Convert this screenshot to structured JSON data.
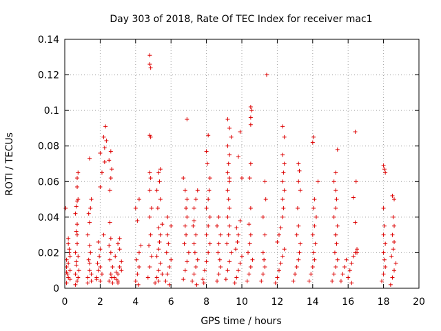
{
  "chart_data": {
    "type": "scatter",
    "title": "Day 303 of 2018, Rate Of TEC Index for receiver mac1",
    "xlabel": "GPS time / hours",
    "ylabel": "ROTI / TECUs",
    "xlim": [
      0,
      20
    ],
    "ylim": [
      0,
      0.14
    ],
    "grid": true,
    "legend": "none",
    "marker": "+",
    "color": "#dd0000",
    "xticks": [
      0,
      2,
      4,
      6,
      8,
      10,
      12,
      14,
      16,
      18,
      20
    ],
    "yticks": [
      0,
      0.02,
      0.04,
      0.06,
      0.08,
      0.1,
      0.12,
      0.14
    ],
    "xtick_labels": [
      "0",
      "2",
      "4",
      "6",
      "8",
      "10",
      "12",
      "14",
      "16",
      "18",
      "20"
    ],
    "ytick_labels": [
      "0",
      "0.02",
      "0.04",
      "0.06",
      "0.08",
      "0.1",
      "0.12",
      "0.14"
    ],
    "series": [
      {
        "name": "ROTI",
        "x": [
          0.1,
          0.2,
          0.3,
          0.15,
          0.25,
          0.1,
          0.2,
          0.3,
          0.2,
          0.1,
          0.3,
          0.2,
          0.1,
          0.25,
          0.05,
          0.6,
          0.7,
          0.65,
          0.75,
          0.6,
          0.7,
          0.65,
          0.75,
          0.7,
          0.6,
          0.8,
          0.7,
          0.65,
          0.75,
          0.7,
          0.7,
          0.75,
          0.7,
          0.65,
          0.6,
          1.3,
          1.4,
          1.35,
          1.5,
          1.45,
          1.4,
          1.3,
          1.5,
          1.4,
          1.35,
          1.45,
          1.5,
          1.4,
          1.3,
          1.4,
          1.8,
          1.9,
          2.0,
          1.85,
          1.95,
          2.0,
          2.1,
          1.9,
          2.0,
          2.2,
          1.8,
          2.0,
          2.1,
          2.0,
          2.25,
          2.35,
          2.2,
          2.3,
          2.25,
          2.5,
          2.6,
          2.7,
          2.55,
          2.65,
          2.6,
          2.5,
          2.7,
          2.6,
          2.55,
          2.6,
          2.65,
          2.5,
          2.6,
          2.55,
          2.8,
          2.9,
          3.0,
          3.1,
          3.2,
          2.85,
          3.0,
          3.1,
          2.9,
          3.0,
          3.2,
          3.1,
          3.0,
          4.0,
          4.1,
          4.2,
          4.05,
          4.15,
          4.2,
          4.3,
          4.1,
          4.0,
          4.2,
          4.7,
          4.8,
          4.9,
          4.75,
          4.85,
          4.8,
          4.9,
          4.8,
          4.85,
          4.8,
          4.85,
          4.8,
          4.8,
          4.85,
          4.8,
          5.1,
          5.2,
          5.3,
          5.4,
          5.5,
          5.2,
          5.3,
          5.35,
          5.4,
          5.3,
          5.25,
          5.4,
          5.2,
          5.35,
          5.3,
          5.4,
          5.5,
          5.3,
          5.7,
          5.8,
          5.9,
          6.0,
          5.75,
          5.85,
          5.8,
          5.9,
          6.0,
          5.8,
          6.7,
          6.8,
          6.9,
          7.0,
          6.75,
          6.85,
          6.8,
          6.9,
          6.85,
          6.9,
          6.8,
          6.7,
          6.9,
          7.2,
          7.3,
          7.4,
          7.5,
          7.35,
          7.3,
          7.4,
          7.25,
          7.45,
          7.3,
          7.4,
          7.5,
          7.3,
          7.8,
          7.9,
          8.0,
          8.1,
          8.2,
          7.85,
          8.0,
          8.1,
          8.2,
          8.0,
          8.1,
          8.15,
          8.2,
          8.05,
          8.0,
          8.1,
          8.6,
          8.7,
          8.8,
          8.75,
          8.65,
          8.7,
          8.8,
          8.6,
          8.7,
          9.1,
          9.2,
          9.3,
          9.4,
          9.15,
          9.25,
          9.3,
          9.2,
          9.3,
          9.25,
          9.2,
          9.3,
          9.2,
          9.25,
          9.3,
          9.2,
          9.4,
          9.3,
          9.2,
          9.3,
          9.6,
          9.7,
          9.8,
          9.9,
          10.0,
          9.65,
          9.75,
          9.8,
          9.7,
          9.9,
          10.0,
          9.8,
          9.9,
          10.3,
          10.4,
          10.5,
          10.6,
          10.35,
          10.45,
          10.5,
          10.4,
          10.5,
          10.45,
          10.5,
          10.5,
          10.5,
          10.55,
          10.5,
          11.1,
          11.2,
          11.3,
          11.25,
          11.2,
          11.3,
          11.2,
          11.35,
          11.3,
          11.4,
          11.9,
          12.0,
          12.1,
          12.2,
          12.3,
          12.4,
          12.0,
          12.1,
          12.2,
          12.3,
          12.35,
          12.3,
          12.4,
          12.3,
          12.35,
          12.4,
          12.3,
          12.4,
          12.3,
          12.9,
          13.0,
          13.1,
          13.2,
          13.25,
          13.3,
          13.1,
          13.2,
          13.15,
          13.3,
          13.2,
          13.25,
          13.2,
          13.8,
          13.9,
          14.0,
          14.1,
          14.05,
          14.15,
          14.0,
          14.1,
          14.2,
          14.05,
          14.1,
          14.3,
          14.0,
          14.05,
          15.1,
          15.2,
          15.3,
          15.4,
          15.25,
          15.35,
          15.3,
          15.4,
          15.2,
          15.3,
          15.35,
          15.3,
          15.2,
          15.3,
          15.4,
          15.3,
          15.6,
          15.7,
          15.8,
          15.9,
          16.0,
          16.1,
          16.2,
          16.3,
          16.4,
          16.5,
          16.2,
          16.4,
          16.3,
          16.45,
          16.4,
          16.5,
          17.9,
          18.0,
          18.1,
          18.05,
          18.0,
          18.1,
          18.0,
          18.05,
          18.0,
          18.1,
          18.05,
          18.0,
          18.4,
          18.5,
          18.6,
          18.7,
          18.45,
          18.55,
          18.6,
          18.5,
          18.6,
          18.55,
          18.6,
          18.5
        ],
        "y": [
          0.012,
          0.006,
          0.018,
          0.008,
          0.022,
          0.003,
          0.014,
          0.01,
          0.025,
          0.016,
          0.005,
          0.028,
          0.009,
          0.02,
          0.045,
          0.008,
          0.004,
          0.013,
          0.006,
          0.02,
          0.025,
          0.032,
          0.018,
          0.036,
          0.042,
          0.01,
          0.049,
          0.046,
          0.05,
          0.057,
          0.062,
          0.065,
          0.03,
          0.015,
          0.002,
          0.006,
          0.01,
          0.016,
          0.004,
          0.02,
          0.024,
          0.03,
          0.008,
          0.037,
          0.042,
          0.045,
          0.05,
          0.014,
          0.003,
          0.073,
          0.006,
          0.01,
          0.004,
          0.014,
          0.018,
          0.022,
          0.008,
          0.026,
          0.012,
          0.03,
          0.005,
          0.057,
          0.065,
          0.076,
          0.079,
          0.083,
          0.085,
          0.091,
          0.071,
          0.004,
          0.008,
          0.012,
          0.016,
          0.006,
          0.02,
          0.024,
          0.003,
          0.028,
          0.037,
          0.062,
          0.067,
          0.072,
          0.077,
          0.055,
          0.006,
          0.009,
          0.003,
          0.012,
          0.015,
          0.018,
          0.008,
          0.022,
          0.005,
          0.025,
          0.01,
          0.028,
          0.004,
          0.004,
          0.008,
          0.012,
          0.016,
          0.002,
          0.02,
          0.024,
          0.038,
          0.045,
          0.05,
          0.006,
          0.012,
          0.018,
          0.024,
          0.03,
          0.04,
          0.045,
          0.055,
          0.062,
          0.065,
          0.085,
          0.086,
          0.126,
          0.124,
          0.131,
          0.003,
          0.006,
          0.01,
          0.014,
          0.008,
          0.018,
          0.022,
          0.026,
          0.03,
          0.034,
          0.045,
          0.05,
          0.055,
          0.06,
          0.065,
          0.067,
          0.036,
          0.004,
          0.004,
          0.008,
          0.012,
          0.016,
          0.02,
          0.025,
          0.03,
          0.002,
          0.035,
          0.04,
          0.005,
          0.01,
          0.015,
          0.02,
          0.025,
          0.03,
          0.035,
          0.04,
          0.045,
          0.05,
          0.055,
          0.062,
          0.095,
          0.004,
          0.008,
          0.012,
          0.016,
          0.02,
          0.025,
          0.03,
          0.035,
          0.002,
          0.045,
          0.05,
          0.055,
          0.038,
          0.005,
          0.01,
          0.015,
          0.02,
          0.025,
          0.003,
          0.03,
          0.035,
          0.04,
          0.045,
          0.05,
          0.055,
          0.062,
          0.07,
          0.077,
          0.086,
          0.004,
          0.008,
          0.012,
          0.016,
          0.02,
          0.025,
          0.03,
          0.035,
          0.04,
          0.005,
          0.01,
          0.015,
          0.02,
          0.025,
          0.03,
          0.035,
          0.04,
          0.045,
          0.05,
          0.055,
          0.06,
          0.065,
          0.07,
          0.075,
          0.08,
          0.085,
          0.09,
          0.095,
          0.062,
          0.003,
          0.006,
          0.01,
          0.014,
          0.018,
          0.022,
          0.026,
          0.03,
          0.034,
          0.038,
          0.062,
          0.074,
          0.088,
          0.004,
          0.008,
          0.012,
          0.016,
          0.02,
          0.025,
          0.03,
          0.036,
          0.045,
          0.062,
          0.07,
          0.092,
          0.096,
          0.1,
          0.102,
          0.004,
          0.008,
          0.012,
          0.016,
          0.02,
          0.03,
          0.04,
          0.05,
          0.06,
          0.12,
          0.003,
          0.006,
          0.01,
          0.014,
          0.018,
          0.022,
          0.026,
          0.03,
          0.034,
          0.04,
          0.045,
          0.05,
          0.055,
          0.06,
          0.065,
          0.07,
          0.075,
          0.085,
          0.091,
          0.004,
          0.008,
          0.012,
          0.016,
          0.02,
          0.025,
          0.03,
          0.035,
          0.045,
          0.055,
          0.06,
          0.066,
          0.07,
          0.004,
          0.008,
          0.012,
          0.016,
          0.02,
          0.025,
          0.03,
          0.035,
          0.04,
          0.045,
          0.05,
          0.06,
          0.082,
          0.085,
          0.004,
          0.008,
          0.012,
          0.016,
          0.02,
          0.025,
          0.03,
          0.035,
          0.04,
          0.045,
          0.05,
          0.055,
          0.06,
          0.065,
          0.078,
          0.03,
          0.004,
          0.008,
          0.012,
          0.016,
          0.006,
          0.01,
          0.014,
          0.018,
          0.02,
          0.022,
          0.003,
          0.037,
          0.051,
          0.06,
          0.088,
          0.02,
          0.004,
          0.008,
          0.012,
          0.016,
          0.02,
          0.025,
          0.03,
          0.035,
          0.045,
          0.065,
          0.067,
          0.069,
          0.002,
          0.006,
          0.01,
          0.014,
          0.018,
          0.022,
          0.026,
          0.03,
          0.035,
          0.04,
          0.05,
          0.052
        ]
      }
    ]
  }
}
